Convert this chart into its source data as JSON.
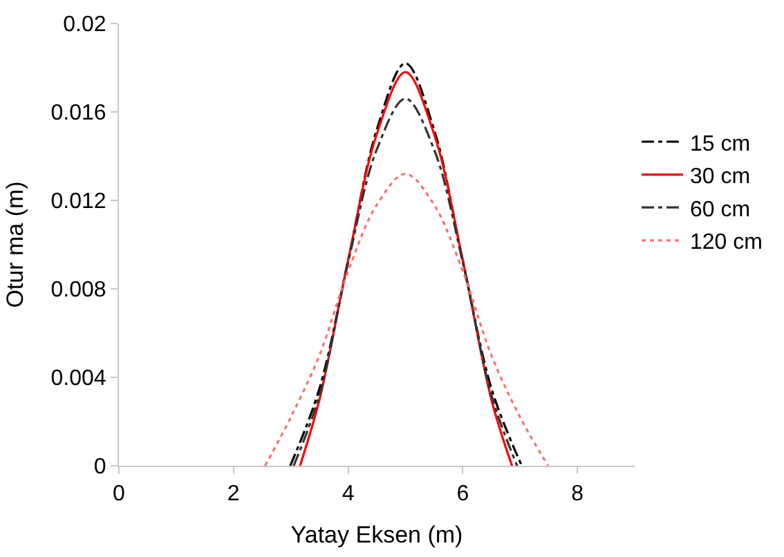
{
  "chart_data": {
    "type": "line",
    "xlabel": "Yatay Eksen (m)",
    "ylabel": "Otur ma (m)",
    "xlim": [
      0,
      9
    ],
    "xticks": [
      0,
      2,
      4,
      6,
      8
    ],
    "ylim": [
      0,
      0.02
    ],
    "yticks": [
      0,
      0.004,
      0.008,
      0.012,
      0.016,
      0.02
    ],
    "legend": "right",
    "marker": "none",
    "series": [
      {
        "name": "15 cm",
        "color": "#000000",
        "line_style": "dashed",
        "x": [
          2.99,
          3.5,
          4,
          4.5,
          5,
          5.5,
          6,
          6.5,
          7.03
        ],
        "values": [
          0,
          0.0035,
          0.0093,
          0.0152,
          0.0182,
          0.0152,
          0.0093,
          0.0035,
          0
        ]
      },
      {
        "name": "30 cm",
        "color": "#ff0000",
        "line_style": "solid",
        "x": [
          3.16,
          3.5,
          4,
          4.5,
          5,
          5.5,
          6,
          6.5,
          6.86
        ],
        "values": [
          0,
          0.003,
          0.0093,
          0.015,
          0.0178,
          0.015,
          0.0093,
          0.003,
          0
        ]
      },
      {
        "name": "60 cm",
        "color": "#333333",
        "line_style": "dashed",
        "x": [
          3.05,
          3.5,
          4,
          4.5,
          5,
          5.5,
          6,
          6.5,
          6.95
        ],
        "values": [
          0,
          0.0032,
          0.0092,
          0.0143,
          0.0166,
          0.0143,
          0.0092,
          0.0032,
          0
        ]
      },
      {
        "name": "120 cm",
        "color": "#ff7070",
        "line_style": "dotted",
        "x": [
          2.55,
          3,
          3.5,
          4,
          4.5,
          5,
          5.5,
          6,
          6.5,
          7,
          7.49
        ],
        "values": [
          0,
          0.0022,
          0.005,
          0.0088,
          0.0118,
          0.0132,
          0.0118,
          0.0088,
          0.005,
          0.0022,
          0
        ]
      }
    ]
  }
}
